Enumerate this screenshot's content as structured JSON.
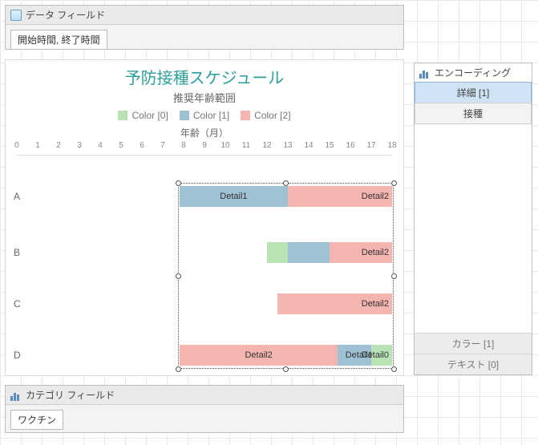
{
  "grid": {
    "cell": 26
  },
  "dataFieldsPanel": {
    "title": "データ フィールド",
    "chip": "開始時間, 終了時間"
  },
  "categoryFieldsPanel": {
    "title": "カテゴリ フィールド",
    "chip": "ワクチン"
  },
  "encodingPanel": {
    "title": "エンコーディング",
    "rows": [
      {
        "label": "詳細 [1]",
        "selected": true
      },
      {
        "label": "接種",
        "selected": false
      }
    ],
    "bottom": [
      {
        "label": "カラー [1]"
      },
      {
        "label": "テキスト [0]"
      }
    ]
  },
  "chart": {
    "title": "予防接種スケジュール",
    "subtitle": "推奨年齢範囲",
    "xAxisTitle": "年齢（月）",
    "colors": {
      "c0": "#b9e3b5",
      "c1": "#9ec1d4",
      "c2": "#f4b5b1"
    },
    "legend": [
      {
        "label": "Color [0]",
        "colorKey": "c0"
      },
      {
        "label": "Color [1]",
        "colorKey": "c1"
      },
      {
        "label": "Color [2]",
        "colorKey": "c2"
      }
    ],
    "xmin": 0,
    "xmax": 18,
    "categories": [
      "A",
      "B",
      "C",
      "D"
    ],
    "rowY": {
      "A": 38,
      "B": 108,
      "C": 172,
      "D": 236
    },
    "bars": [
      {
        "cat": "A",
        "start": 7.8,
        "end": 13.0,
        "colorKey": "c1",
        "label": "Detail1",
        "labelAlign": "center"
      },
      {
        "cat": "A",
        "start": 13.0,
        "end": 18.0,
        "colorKey": "c2",
        "label": "Detail2",
        "labelAlign": "right"
      },
      {
        "cat": "B",
        "start": 12.0,
        "end": 13.0,
        "colorKey": "c0",
        "label": "",
        "labelAlign": "center"
      },
      {
        "cat": "B",
        "start": 13.0,
        "end": 15.0,
        "colorKey": "c1",
        "label": "",
        "labelAlign": "center"
      },
      {
        "cat": "B",
        "start": 15.0,
        "end": 18.0,
        "colorKey": "c2",
        "label": "Detail2",
        "labelAlign": "right"
      },
      {
        "cat": "C",
        "start": 12.5,
        "end": 18.0,
        "colorKey": "c2",
        "label": "Detail2",
        "labelAlign": "right"
      },
      {
        "cat": "D",
        "start": 7.8,
        "end": 15.4,
        "colorKey": "c2",
        "label": "Detail2",
        "labelAlign": "center"
      },
      {
        "cat": "D",
        "start": 15.4,
        "end": 17.0,
        "colorKey": "c1",
        "label": "Detail1",
        "labelAlign": "right",
        "labelNudge": -6
      },
      {
        "cat": "D",
        "start": 17.0,
        "end": 18.0,
        "colorKey": "c0",
        "label": "Detail0",
        "labelAlign": "right"
      }
    ],
    "selection": {
      "cat": "A",
      "start": 7.8,
      "end": 18.0,
      "spanToCat": "D"
    }
  }
}
